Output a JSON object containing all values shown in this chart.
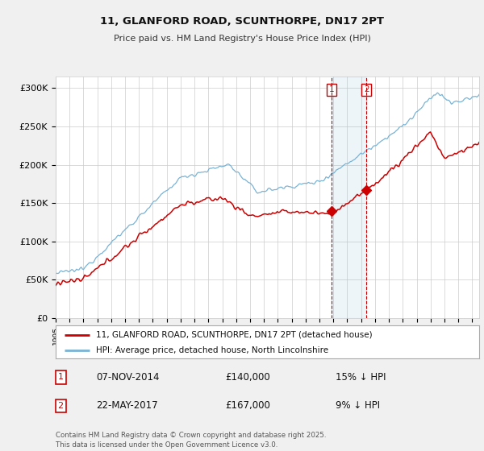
{
  "title_line1": "11, GLANFORD ROAD, SCUNTHORPE, DN17 2PT",
  "title_line2": "Price paid vs. HM Land Registry's House Price Index (HPI)",
  "ylabel_ticks": [
    "£0",
    "£50K",
    "£100K",
    "£150K",
    "£200K",
    "£250K",
    "£300K"
  ],
  "ytick_values": [
    0,
    50000,
    100000,
    150000,
    200000,
    250000,
    300000
  ],
  "ylim": [
    0,
    315000
  ],
  "xlim_start": 1995.0,
  "xlim_end": 2025.5,
  "hpi_color": "#7ab3d4",
  "price_color": "#cc0000",
  "sale1_date": 2014.85,
  "sale1_price": 140000,
  "sale2_date": 2017.39,
  "sale2_price": 167000,
  "bg_color": "#f0f0f0",
  "plot_bg": "#ffffff",
  "grid_color": "#cccccc",
  "legend_label1": "11, GLANFORD ROAD, SCUNTHORPE, DN17 2PT (detached house)",
  "legend_label2": "HPI: Average price, detached house, North Lincolnshire",
  "sale1_label": "07-NOV-2014",
  "sale1_amount": "£140,000",
  "sale1_hpi": "15% ↓ HPI",
  "sale2_label": "22-MAY-2017",
  "sale2_amount": "£167,000",
  "sale2_hpi": "9% ↓ HPI",
  "footer": "Contains HM Land Registry data © Crown copyright and database right 2025.\nThis data is licensed under the Open Government Licence v3.0."
}
